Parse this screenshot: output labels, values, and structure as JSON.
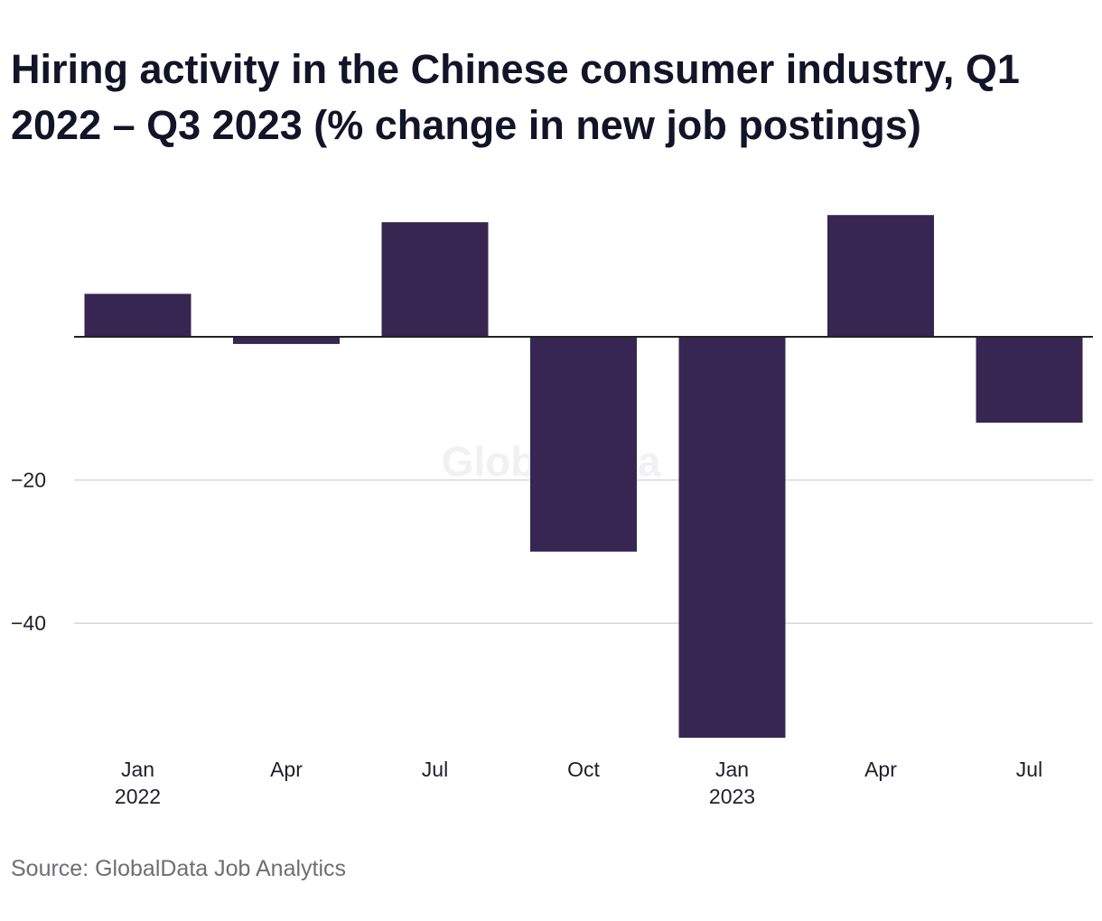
{
  "title": "Hiring activity in the Chinese consumer industry, Q1 2022 – Q3 2023 (% change in new job postings)",
  "source": "Source: GlobalData Job Analytics",
  "watermark": "GlobalData",
  "colors": {
    "bar": "#372552",
    "grid": "#d7d7dc",
    "zero_line": "#222222",
    "text": "#1f1f2c"
  },
  "chart_data": {
    "type": "bar",
    "categories": [
      "Jan 2022",
      "Apr 2022",
      "Jul 2022",
      "Oct 2022",
      "Jan 2023",
      "Apr 2023",
      "Jul 2023"
    ],
    "x_tick_labels": [
      {
        "label": "Jan",
        "year": "2022"
      },
      {
        "label": "Apr",
        "year": ""
      },
      {
        "label": "Jul",
        "year": ""
      },
      {
        "label": "Oct",
        "year": ""
      },
      {
        "label": "Jan",
        "year": "2023"
      },
      {
        "label": "Apr",
        "year": ""
      },
      {
        "label": "Jul",
        "year": ""
      }
    ],
    "values": [
      6,
      -1,
      16,
      -30,
      -56,
      17,
      -12
    ],
    "y_ticks": [
      {
        "value": -20,
        "label": "−20"
      },
      {
        "value": -40,
        "label": "−40"
      }
    ],
    "ylim": [
      -56,
      20
    ],
    "xlabel": "",
    "ylabel": "",
    "grid": true,
    "legend": "none"
  }
}
